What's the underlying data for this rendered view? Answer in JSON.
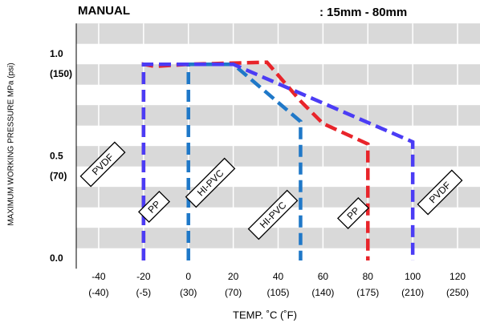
{
  "chart_data": {
    "type": "line",
    "title": "MANUAL",
    "subtitle": ": 15mm - 80mm",
    "x_label": "TEMP. ˚C (˚F)",
    "y_label": "MAXIMUM WORKING PRESSURE  MPa (psi)",
    "xlim": [
      -50,
      130
    ],
    "xticks": [
      -40,
      -20,
      0,
      20,
      40,
      60,
      80,
      100,
      120
    ],
    "xtick_secondary_labels": [
      "(-40)",
      "(-5)",
      "(30)",
      "(70)",
      "(105)",
      "(140)",
      "(175)",
      "(210)",
      "(250)"
    ],
    "ylim": [
      -0.04,
      1.16
    ],
    "yticks": [
      {
        "value": 0,
        "label": "0.0"
      },
      0.5,
      {
        "value": 1,
        "label": "1.0"
      }
    ],
    "ytick_secondary_labels": [
      null,
      "(70)",
      "(150)"
    ],
    "grid": true,
    "series": [
      {
        "name": "PP",
        "color": "#e8242a",
        "x": [
          -20,
          -20,
          -15,
          0,
          35,
          50,
          60,
          80,
          80
        ],
        "values": [
          0,
          0.96,
          0.95,
          0.96,
          0.97,
          0.78,
          0.67,
          0.57,
          0
        ]
      },
      {
        "name": "HI-PVC",
        "color": "#1f78c8",
        "x": [
          0,
          0,
          20,
          50,
          50
        ],
        "values": [
          0,
          0.96,
          0.96,
          0.68,
          0
        ]
      },
      {
        "name": "PVDF",
        "color": "#4b3cf5",
        "x": [
          -20,
          -20,
          20,
          100,
          100
        ],
        "values": [
          0,
          0.96,
          0.96,
          0.58,
          0
        ]
      }
    ],
    "annotations": [
      "PVDF",
      "PP",
      "HI-PVC",
      "HI-PVC",
      "PP",
      "PVDF"
    ]
  }
}
